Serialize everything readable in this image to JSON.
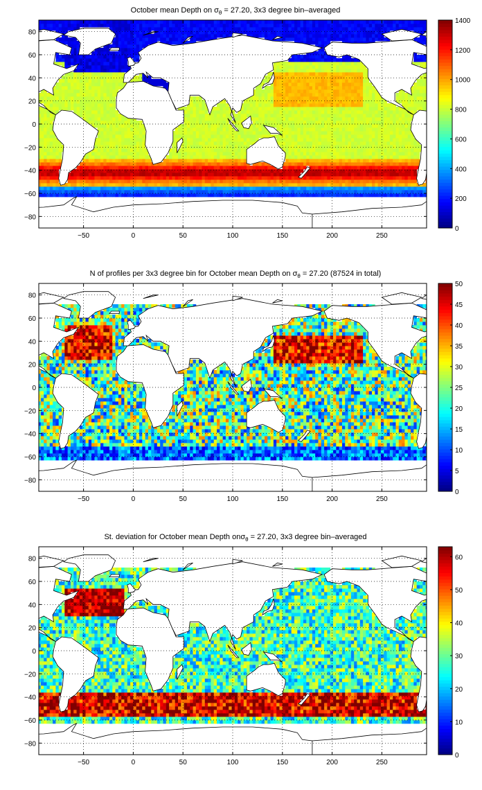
{
  "chart_data": [
    {
      "type": "heatmap",
      "title": {
        "pre": "October mean Depth on ",
        "sym": "σ",
        "sub": "θ",
        "post": " = 27.20, 3x3 degree bin–averaged"
      },
      "xticks": [
        -50,
        0,
        50,
        100,
        150,
        200,
        250
      ],
      "yticks": [
        80,
        60,
        40,
        20,
        0,
        -20,
        -40,
        -60,
        -80
      ],
      "xlim": [
        -95,
        295
      ],
      "ylim": [
        -90,
        90
      ],
      "colorbar": {
        "min": 0,
        "max": 1400,
        "ticks": [
          0,
          200,
          400,
          600,
          800,
          1000,
          1200,
          1400
        ]
      },
      "grid": true,
      "field": "mean"
    },
    {
      "type": "heatmap",
      "title": {
        "pre": "N of profiles per 3x3 degree bin for October mean Depth on ",
        "sym": "σ",
        "sub": "θ",
        "post": " = 27.20 (87524 in total)"
      },
      "xticks": [
        -50,
        0,
        50,
        100,
        150,
        200,
        250
      ],
      "yticks": [
        80,
        60,
        40,
        20,
        0,
        -20,
        -40,
        -60,
        -80
      ],
      "xlim": [
        -95,
        295
      ],
      "ylim": [
        -90,
        90
      ],
      "colorbar": {
        "min": 0,
        "max": 50,
        "ticks": [
          0,
          5,
          10,
          15,
          20,
          25,
          30,
          35,
          40,
          45,
          50
        ]
      },
      "grid": true,
      "field": "count"
    },
    {
      "type": "heatmap",
      "title": {
        "pre": "St. deviation for October mean Depth on",
        "sym": "σ",
        "sub": "θ",
        "post": " = 27.20, 3x3 degree bin–averaged"
      },
      "xticks": [
        -50,
        0,
        50,
        100,
        150,
        200,
        250
      ],
      "yticks": [
        80,
        60,
        40,
        20,
        0,
        -20,
        -40,
        -60,
        -80
      ],
      "xlim": [
        -95,
        295
      ],
      "ylim": [
        -90,
        90
      ],
      "colorbar": {
        "min": 0,
        "max": 63,
        "ticks": [
          0,
          10,
          20,
          30,
          40,
          50,
          60
        ]
      },
      "grid": true,
      "field": "std"
    }
  ]
}
